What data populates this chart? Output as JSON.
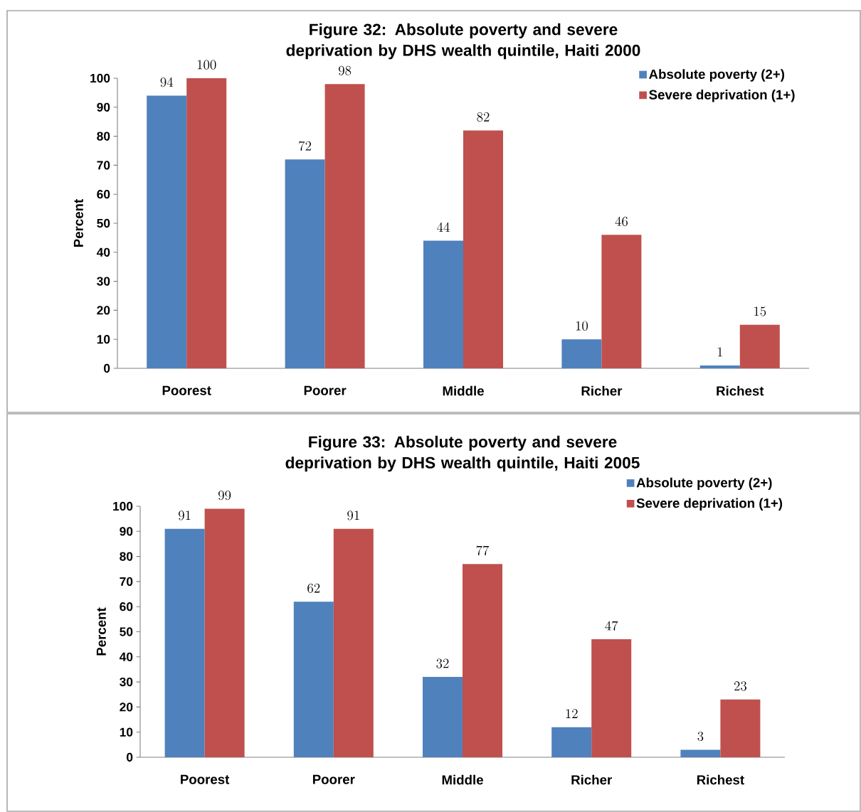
{
  "chart_data": [
    {
      "type": "bar",
      "title": "Figure 32: Absolute poverty and severe deprivation by DHS wealth quintile, Haiti 2000",
      "ylabel": "Percent",
      "categories": [
        "Poorest",
        "Poorer",
        "Middle",
        "Richer",
        "Richest"
      ],
      "series": [
        {
          "name": "Absolute poverty (2+)",
          "color": "#4f81bd",
          "values": [
            94,
            72,
            44,
            10,
            1
          ]
        },
        {
          "name": "Severe deprivation (1+)",
          "color": "#c0504d",
          "values": [
            100,
            98,
            82,
            46,
            15
          ]
        }
      ],
      "ylim": [
        0,
        100
      ],
      "yticks": [
        0,
        10,
        20,
        30,
        40,
        50,
        60,
        70,
        80,
        90,
        100
      ],
      "grid": false,
      "legend": "top right",
      "data_labels": true
    },
    {
      "type": "bar",
      "title": "Figure 33: Absolute poverty and severe deprivation by DHS wealth quintile, Haiti 2005",
      "ylabel": "Percent",
      "categories": [
        "Poorest",
        "Poorer",
        "Middle",
        "Richer",
        "Richest"
      ],
      "series": [
        {
          "name": "Absolute poverty (2+)",
          "color": "#4f81bd",
          "values": [
            91,
            62,
            32,
            12,
            3
          ]
        },
        {
          "name": "Severe deprivation (1+)",
          "color": "#c0504d",
          "values": [
            99,
            91,
            77,
            47,
            23
          ]
        }
      ],
      "ylim": [
        0,
        100
      ],
      "yticks": [
        0,
        10,
        20,
        30,
        40,
        50,
        60,
        70,
        80,
        90,
        100
      ],
      "grid": false,
      "legend": "top right",
      "data_labels": true
    }
  ]
}
